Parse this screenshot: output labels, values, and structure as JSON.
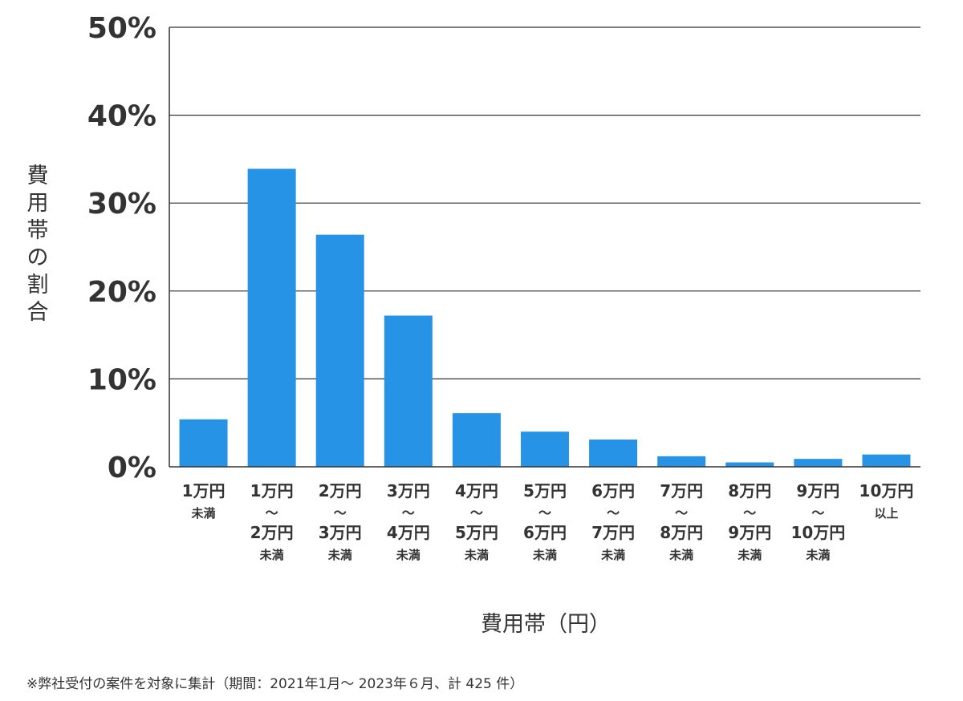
{
  "chart_data": {
    "type": "bar",
    "categories": [
      [
        "1万円",
        "未満"
      ],
      [
        "1万円",
        "〜",
        "2万円",
        "未満"
      ],
      [
        "2万円",
        "〜",
        "3万円",
        "未満"
      ],
      [
        "3万円",
        "〜",
        "4万円",
        "未満"
      ],
      [
        "4万円",
        "〜",
        "5万円",
        "未満"
      ],
      [
        "5万円",
        "〜",
        "6万円",
        "未満"
      ],
      [
        "6万円",
        "〜",
        "7万円",
        "未満"
      ],
      [
        "7万円",
        "〜",
        "8万円",
        "未満"
      ],
      [
        "8万円",
        "〜",
        "9万円",
        "未満"
      ],
      [
        "9万円",
        "〜",
        "10万円",
        "未満"
      ],
      [
        "10万円",
        "以上"
      ]
    ],
    "values": [
      5.4,
      33.9,
      26.4,
      17.2,
      6.1,
      4.0,
      3.1,
      1.2,
      0.5,
      0.9,
      1.4
    ],
    "ylim": [
      0,
      50
    ],
    "yticks": [
      0,
      10,
      20,
      30,
      40,
      50
    ],
    "ytick_labels": [
      "0%",
      "10%",
      "20%",
      "30%",
      "40%",
      "50%"
    ],
    "ylabel": "費用帯の割合",
    "xlabel": "費用帯（円）",
    "grid": true,
    "bar_color": "#2793e6",
    "grid_color": "#333333"
  },
  "footnote": "※弊社受付の案件を対象に集計（期間：2021年1月～ 2023年６月、計 425 件）"
}
